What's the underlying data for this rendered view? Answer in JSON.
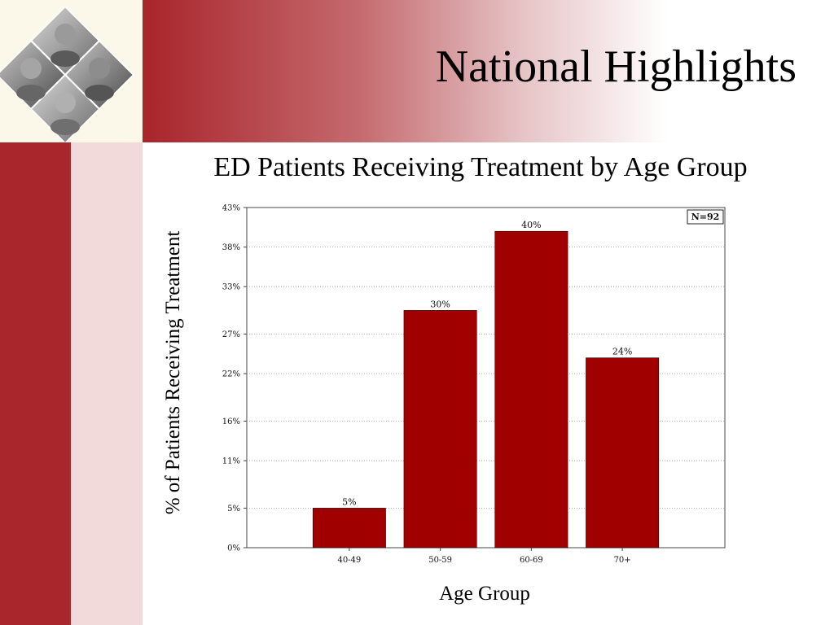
{
  "slide": {
    "title": "National Highlights"
  },
  "colors": {
    "brand": "#a8262c",
    "bar": "#a00000",
    "pink": "#f2d9da"
  },
  "logo": {
    "icon": "four-faces-diamond-photo-icon"
  },
  "chart_data": {
    "type": "bar",
    "title": "ED Patients Receiving Treatment by Age Group",
    "xlabel": "Age Group",
    "ylabel": "% of Patients Receiving Treatment",
    "categories": [
      "40-49",
      "50-59",
      "60-69",
      "70+"
    ],
    "values": [
      5,
      30,
      40,
      24
    ],
    "data_labels": [
      "5%",
      "30%",
      "40%",
      "24%"
    ],
    "yticks": [
      0,
      5,
      11,
      16,
      22,
      27,
      33,
      38,
      43
    ],
    "ytick_labels": [
      "0%",
      "5%",
      "11%",
      "16%",
      "22%",
      "27%",
      "33%",
      "38%",
      "43%"
    ],
    "ylim": [
      0,
      43
    ],
    "grid": true,
    "annotation": "N=92",
    "annotation_position": "top-right"
  }
}
